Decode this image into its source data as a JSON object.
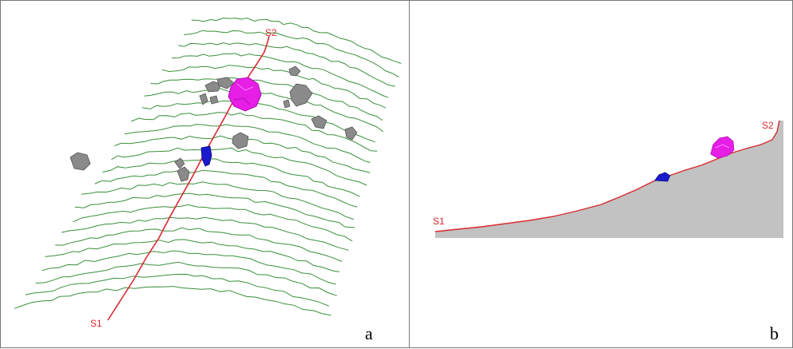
{
  "panel_a": {
    "letter": "a",
    "profile_start_label": "S1",
    "profile_end_label": "S2",
    "colors": {
      "contour": "#3a8f3a",
      "profile": "#d9282f",
      "large_boulder": "#e61ee6",
      "small_block": "#1a1acc",
      "rocks": "#8a8a8a"
    }
  },
  "panel_b": {
    "letter": "b",
    "profile_start_label": "S1",
    "profile_end_label": "S2",
    "colors": {
      "ground": "#c2c2c2",
      "profile": "#d9282f",
      "large_boulder": "#e61ee6",
      "small_block": "#1a1acc"
    }
  }
}
